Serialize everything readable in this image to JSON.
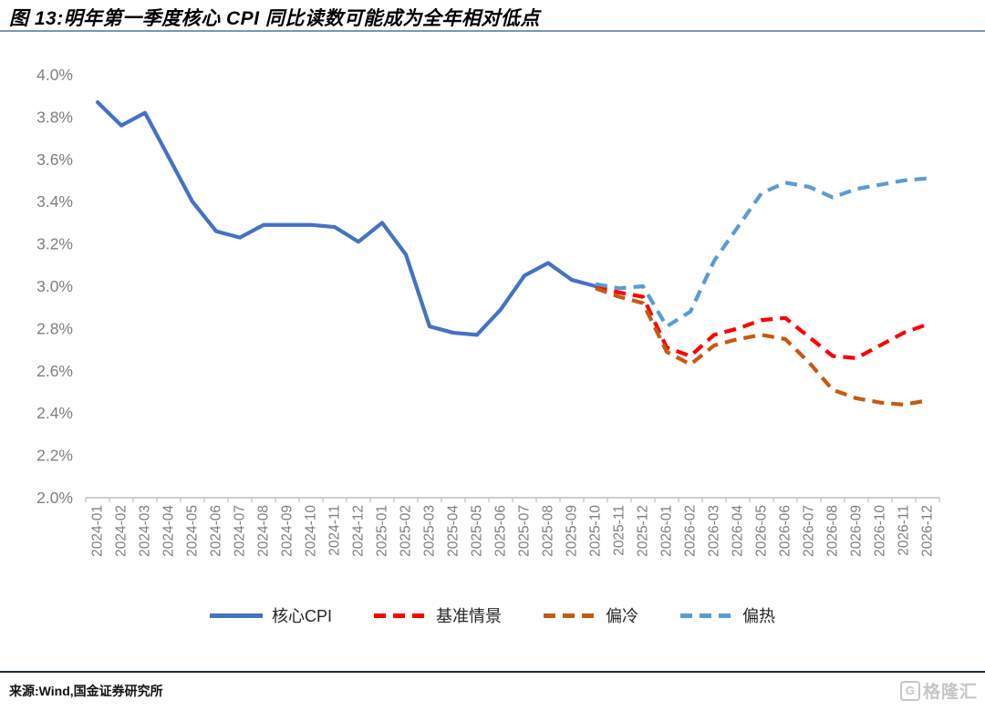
{
  "header": {
    "title": "图 13:明年第一季度核心 CPI 同比读数可能成为全年相对低点"
  },
  "chart_data": {
    "type": "line",
    "title": "明年第一季度核心 CPI 同比读数可能成为全年相对低点",
    "xlabel": "",
    "ylabel": "",
    "ylim": [
      2.0,
      4.0
    ],
    "grid": false,
    "legend_position": "bottom",
    "y_ticks": [
      "2.0%",
      "2.2%",
      "2.4%",
      "2.6%",
      "2.8%",
      "3.0%",
      "3.2%",
      "3.4%",
      "3.6%",
      "3.8%",
      "4.0%"
    ],
    "categories": [
      "2024-01",
      "2024-02",
      "2024-03",
      "2024-04",
      "2024-05",
      "2024-06",
      "2024-07",
      "2024-08",
      "2024-09",
      "2024-10",
      "2024-11",
      "2024-12",
      "2025-01",
      "2025-02",
      "2025-03",
      "2025-04",
      "2025-05",
      "2025-06",
      "2025-07",
      "2025-08",
      "2025-09",
      "2025-10",
      "2025-11",
      "2025-12",
      "2026-01",
      "2026-02",
      "2026-03",
      "2026-04",
      "2026-05",
      "2026-06",
      "2026-07",
      "2026-08",
      "2026-09",
      "2026-10",
      "2026-11",
      "2026-12"
    ],
    "series": [
      {
        "name": "核心CPI",
        "color": "#4472C4",
        "dash": false,
        "values": [
          3.87,
          3.76,
          3.82,
          3.61,
          3.4,
          3.26,
          3.23,
          3.29,
          3.29,
          3.29,
          3.28,
          3.21,
          3.3,
          3.15,
          2.81,
          2.78,
          2.77,
          2.89,
          3.05,
          3.11,
          3.03,
          3.0,
          null,
          null,
          null,
          null,
          null,
          null,
          null,
          null,
          null,
          null,
          null,
          null,
          null,
          null
        ]
      },
      {
        "name": "基准情景",
        "color": "#FF0000",
        "dash": true,
        "values": [
          null,
          null,
          null,
          null,
          null,
          null,
          null,
          null,
          null,
          null,
          null,
          null,
          null,
          null,
          null,
          null,
          null,
          null,
          null,
          null,
          null,
          3.0,
          2.97,
          2.95,
          2.71,
          2.67,
          2.77,
          2.8,
          2.84,
          2.85,
          2.76,
          2.67,
          2.66,
          2.72,
          2.78,
          2.82
        ]
      },
      {
        "name": "偏冷",
        "color": "#C55A11",
        "dash": true,
        "values": [
          null,
          null,
          null,
          null,
          null,
          null,
          null,
          null,
          null,
          null,
          null,
          null,
          null,
          null,
          null,
          null,
          null,
          null,
          null,
          null,
          null,
          2.99,
          2.95,
          2.92,
          2.69,
          2.63,
          2.72,
          2.75,
          2.77,
          2.75,
          2.64,
          2.51,
          2.47,
          2.45,
          2.44,
          2.46
        ]
      },
      {
        "name": "偏热",
        "color": "#5B9BD5",
        "dash": true,
        "values": [
          null,
          null,
          null,
          null,
          null,
          null,
          null,
          null,
          null,
          null,
          null,
          null,
          null,
          null,
          null,
          null,
          null,
          null,
          null,
          null,
          null,
          3.01,
          2.99,
          3.0,
          2.81,
          2.88,
          3.12,
          3.28,
          3.44,
          3.49,
          3.47,
          3.42,
          3.46,
          3.48,
          3.5,
          3.51
        ]
      }
    ],
    "axis_color": "#bfbfbf",
    "tick_label_color": "#7f7f7f"
  },
  "footer": {
    "source": "来源:Wind,国金证券研究所",
    "watermark_icon": "G",
    "watermark_text": "格隆汇"
  }
}
